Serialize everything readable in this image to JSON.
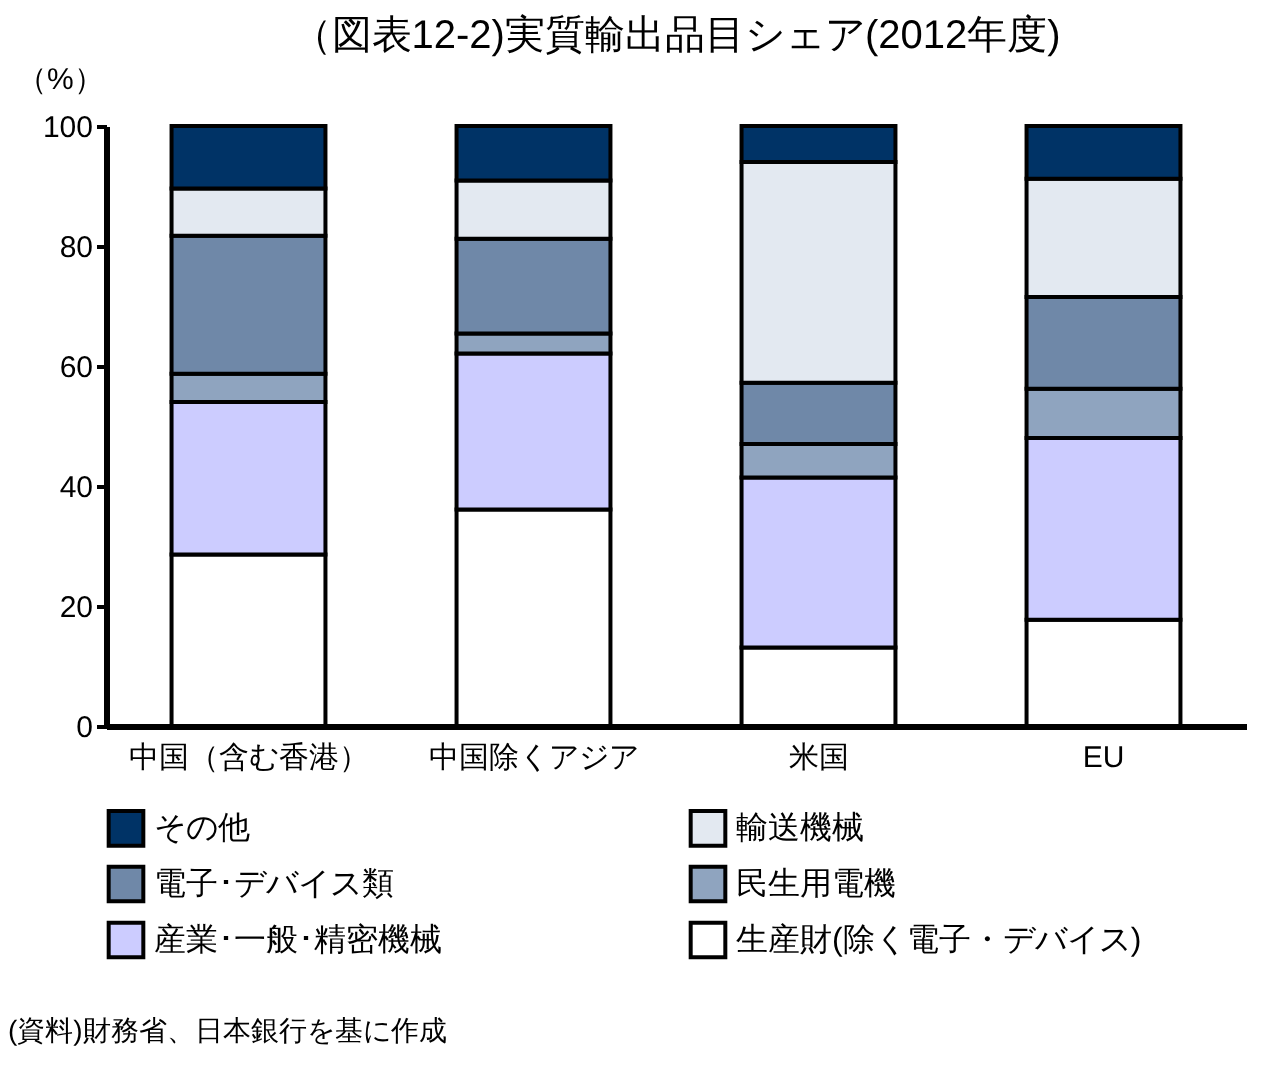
{
  "chart_data": {
    "type": "bar",
    "stacked": true,
    "title": "（図表12-2)実質輸出品目シェア(2012年度)",
    "ylabel": "（%）",
    "categories": [
      "中国（含む香港）",
      "中国除くアジア",
      "米国",
      "EU"
    ],
    "series": [
      {
        "name": "生産財(除く電子・デバイス)",
        "color": "#ffffff",
        "values": [
          28.6,
          36.1,
          13.1,
          17.7
        ]
      },
      {
        "name": "産業･一般･精密機械",
        "color": "#ccccff",
        "values": [
          25.4,
          26.0,
          28.3,
          30.3
        ]
      },
      {
        "name": "民生用電機",
        "color": "#8fa4bf",
        "values": [
          4.7,
          3.3,
          5.6,
          8.2
        ]
      },
      {
        "name": "電子･デバイス類",
        "color": "#6f88a8",
        "values": [
          23.0,
          15.8,
          10.2,
          15.3
        ]
      },
      {
        "name": "輸送機械",
        "color": "#e3e9f1",
        "values": [
          7.9,
          9.7,
          36.8,
          19.7
        ]
      },
      {
        "name": "その他",
        "color": "#003366",
        "values": [
          10.4,
          9.1,
          6.0,
          8.8
        ]
      }
    ],
    "ylim": [
      0,
      100
    ],
    "yticks": [
      0,
      20,
      40,
      60,
      80,
      100
    ],
    "grid": false,
    "legend": "bottom",
    "annotations": [
      "(資料)財務省、日本銀行を基に作成"
    ]
  }
}
